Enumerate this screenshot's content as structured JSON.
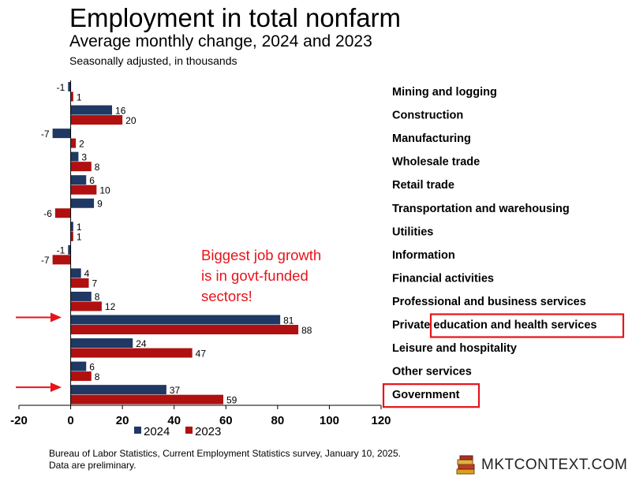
{
  "header": {
    "title": "Employment in total nonfarm",
    "subtitle": "Average monthly change, 2024 and 2023",
    "note": "Seasonally adjusted, in thousands"
  },
  "chart_data": {
    "type": "bar",
    "orientation": "horizontal",
    "categories": [
      "Mining and logging",
      "Construction",
      "Manufacturing",
      "Wholesale trade",
      "Retail trade",
      "Transportation and warehousing",
      "Utilities",
      "Information",
      "Financial activities",
      "Professional and business services",
      "Private education and health services",
      "Leisure and hospitality",
      "Other services",
      "Government"
    ],
    "series": [
      {
        "name": "2024",
        "color": "#1f3864",
        "values": [
          -1,
          16,
          -7,
          3,
          6,
          9,
          1,
          -1,
          4,
          8,
          81,
          24,
          6,
          37
        ]
      },
      {
        "name": "2023",
        "color": "#b01010",
        "values": [
          1,
          20,
          2,
          8,
          10,
          -6,
          1,
          -7,
          7,
          12,
          88,
          47,
          8,
          59
        ]
      }
    ],
    "x_ticks": [
      -20,
      0,
      20,
      40,
      60,
      80,
      100,
      120
    ],
    "xlim": [
      -20,
      120
    ],
    "legend": "bottom",
    "grid": false,
    "annotation": {
      "lines": [
        "Biggest job growth",
        "is in govt-funded",
        "sectors!"
      ],
      "color": "#e8131b"
    },
    "highlighted_categories": [
      "Private education and health services",
      "Government"
    ],
    "highlight_color": "#e8131b"
  },
  "footer": {
    "source_line1": "Bureau of Labor Statistics, Current Employment Statistics survey, January 10, 2025.",
    "source_line2": "Data are preliminary.",
    "brand": "MKTCONTEXT.COM"
  }
}
